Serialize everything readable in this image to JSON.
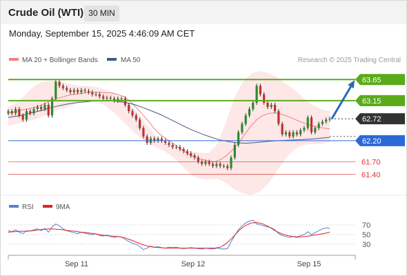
{
  "header": {
    "title": "Crude Oil (WTI)",
    "interval": "30 MIN"
  },
  "datetime": "Monday, September 15, 2025 4:46:09 AM CET",
  "legend": {
    "ma20_bb": "MA 20 + Bollinger Bands",
    "ma50": "MA 50"
  },
  "copyright": "Research © 2025 Trading Central",
  "rsi_legend": {
    "rsi": "RSI",
    "ma9": "9MA"
  },
  "colors": {
    "ma20": "#f08080",
    "ma50": "#3a5a8c",
    "green_level": "#5aaa1a",
    "blue_level": "#2a6ad8",
    "red_level": "#e03030",
    "current": "#333333",
    "arrow": "#2a6ab0",
    "bull": "#2a8a2a",
    "bear": "#c03030",
    "rsi_line": "#5580d0",
    "rsi_ma": "#e02020"
  },
  "chart_data": [
    {
      "type": "line",
      "title": "Crude Oil (WTI)",
      "x_ticks": [
        "Sep 11",
        "Sep 12",
        "Sep 15"
      ],
      "ylim": [
        61.2,
        63.9
      ],
      "levels": [
        {
          "value": 63.65,
          "label": "63.65",
          "kind": "resistance"
        },
        {
          "value": 63.15,
          "label": "63.15",
          "kind": "resistance"
        },
        {
          "value": 62.72,
          "label": "62.72",
          "kind": "current"
        },
        {
          "value": 62.2,
          "label": "62.20",
          "kind": "pivot"
        },
        {
          "value": 61.7,
          "label": "61.70",
          "kind": "support"
        },
        {
          "value": 61.4,
          "label": "61.40",
          "kind": "support"
        }
      ],
      "price": [
        62.9,
        62.85,
        62.95,
        62.8,
        62.7,
        62.9,
        62.85,
        62.95,
        63.0,
        62.95,
        63.05,
        62.8,
        63.2,
        63.6,
        63.5,
        63.45,
        63.4,
        63.35,
        63.4,
        63.35,
        63.4,
        63.38,
        63.35,
        63.3,
        63.3,
        63.25,
        63.2,
        63.22,
        63.2,
        63.15,
        63.2,
        63.2,
        63.05,
        62.9,
        62.8,
        62.7,
        62.5,
        62.3,
        62.15,
        62.25,
        62.2,
        62.25,
        62.2,
        62.15,
        62.1,
        62.05,
        62.05,
        62.0,
        61.95,
        61.9,
        61.85,
        61.8,
        61.7,
        61.65,
        61.7,
        61.65,
        61.6,
        61.65,
        61.6,
        61.6,
        61.55,
        61.8,
        62.1,
        62.4,
        62.6,
        62.8,
        62.95,
        63.1,
        63.5,
        63.3,
        63.1,
        63.0,
        63.05,
        62.9,
        62.6,
        62.35,
        62.4,
        62.3,
        62.4,
        62.35,
        62.45,
        62.5,
        62.75,
        62.4,
        62.5,
        62.6,
        62.65,
        62.7,
        62.72
      ],
      "ma20": [
        62.85,
        62.88,
        62.92,
        62.95,
        62.98,
        63.02,
        63.08,
        63.15,
        63.2,
        63.24,
        63.28,
        63.3,
        63.32,
        63.34,
        63.35,
        63.35,
        63.34,
        63.33,
        63.3,
        63.25,
        63.15,
        63.0,
        62.85,
        62.68,
        62.5,
        62.35,
        62.25,
        62.15,
        62.05,
        61.95,
        61.85,
        61.8,
        61.75,
        61.72,
        61.7,
        61.75,
        61.85,
        61.98,
        62.15,
        62.35,
        62.55,
        62.7,
        62.8,
        62.85,
        62.86,
        62.83,
        62.78,
        62.72,
        62.66,
        62.6,
        62.56,
        62.52,
        62.5,
        62.48
      ],
      "ma50": [
        62.75,
        62.78,
        62.82,
        62.87,
        62.92,
        62.98,
        63.03,
        63.07,
        63.1,
        63.12,
        63.14,
        63.15,
        63.15,
        63.13,
        63.1,
        63.05,
        62.98,
        62.9,
        62.82,
        62.72,
        62.62,
        62.52,
        62.43,
        62.35,
        62.28,
        62.22,
        62.18,
        62.15,
        62.14,
        62.15,
        62.17,
        62.19,
        62.2,
        62.21,
        62.22,
        62.23,
        62.24,
        62.26,
        62.28
      ],
      "bb_upper": [
        63.0,
        63.1,
        63.3,
        63.5,
        63.6,
        63.62,
        63.6,
        63.55,
        63.5,
        63.5,
        63.48,
        63.42,
        63.35,
        63.25,
        63.05,
        62.85,
        62.55,
        62.3,
        62.15,
        62.05,
        62.0,
        61.95,
        61.92,
        61.9,
        62.1,
        62.6,
        63.2,
        63.6,
        63.8,
        63.85,
        63.8,
        63.7,
        63.55,
        63.4,
        63.2,
        63.05,
        62.95,
        62.9
      ],
      "bb_lower": [
        62.55,
        62.6,
        62.65,
        62.7,
        62.78,
        62.85,
        62.95,
        63.0,
        63.1,
        63.15,
        63.12,
        63.05,
        62.9,
        62.7,
        62.5,
        62.3,
        62.15,
        62.05,
        61.95,
        61.8,
        61.6,
        61.4,
        61.3,
        61.28,
        61.3,
        61.2,
        61.05,
        60.95,
        60.9,
        61.0,
        61.2,
        61.5,
        61.8,
        62.0,
        62.1,
        62.12,
        62.12,
        62.15
      ],
      "projection": {
        "from": 62.72,
        "to": 63.65
      }
    },
    {
      "type": "line",
      "title": "RSI",
      "ylim": [
        10,
        90
      ],
      "y_ticks": [
        70,
        50,
        30
      ],
      "series": [
        {
          "name": "RSI",
          "values": [
            58,
            56,
            60,
            55,
            52,
            58,
            57,
            60,
            62,
            58,
            63,
            55,
            66,
            72,
            68,
            62,
            58,
            56,
            54,
            52,
            55,
            53,
            51,
            50,
            52,
            48,
            47,
            49,
            46,
            44,
            46,
            45,
            40,
            36,
            32,
            30,
            25,
            19,
            22,
            26,
            24,
            25,
            23,
            22,
            24,
            23,
            24,
            22,
            21,
            22,
            23,
            22,
            21,
            20,
            22,
            21,
            20,
            22,
            21,
            20,
            21,
            35,
            48,
            60,
            68,
            74,
            78,
            80,
            72,
            70,
            68,
            66,
            64,
            60,
            52,
            48,
            46,
            44,
            46,
            44,
            48,
            50,
            56,
            50,
            54,
            58,
            62,
            64,
            63
          ]
        },
        {
          "name": "9MA",
          "values": [
            55,
            56,
            57,
            57,
            58,
            60,
            61,
            62,
            61,
            60,
            58,
            57,
            55,
            54,
            52,
            50,
            48,
            47,
            46,
            44,
            40,
            35,
            30,
            26,
            24,
            23,
            22,
            22,
            22,
            22,
            22,
            22,
            22,
            22,
            22,
            24,
            32,
            44,
            58,
            68,
            74,
            75,
            72,
            66,
            58,
            52,
            48,
            46,
            45,
            46,
            48,
            50,
            52,
            55
          ]
        }
      ]
    }
  ]
}
